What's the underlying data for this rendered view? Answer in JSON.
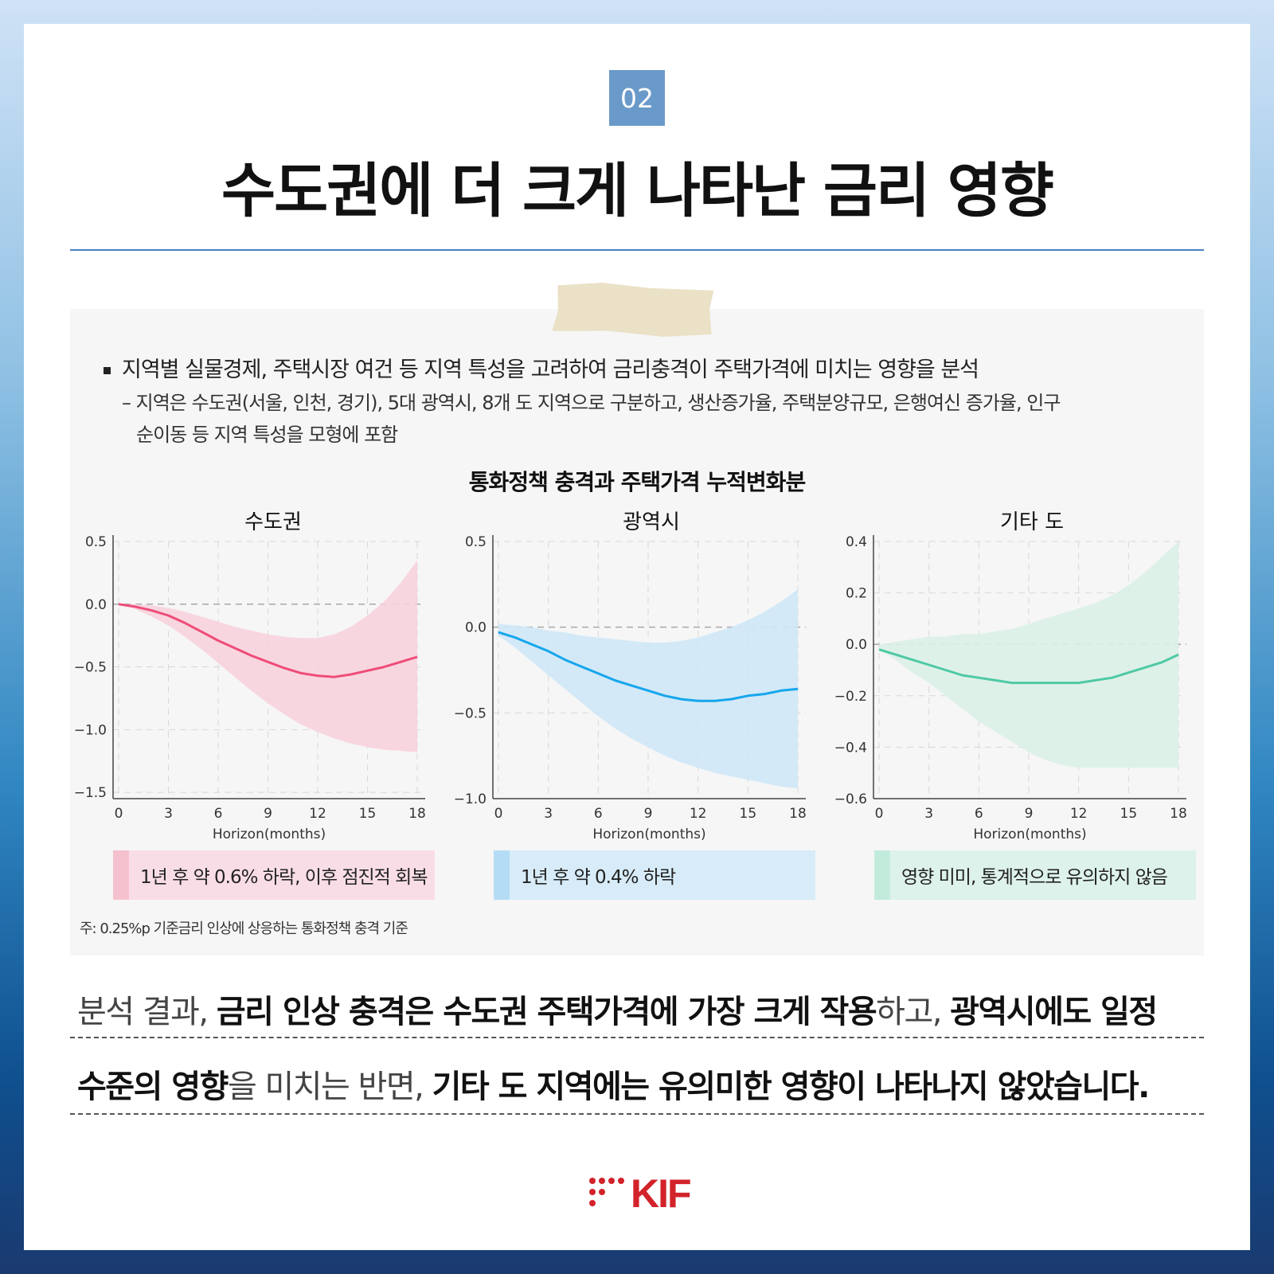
{
  "badge": "02",
  "title": "수도권에 더 크게 나타난 금리 영향",
  "bullet": "지역별 실물경제, 주택시장 여건 등 지역 특성을 고려하여 금리충격이 주택가격에 미치는 영향을 분석",
  "sub_bullet_line1": "– 지역은 수도권(서울, 인천, 경기), 5대 광역시, 8개 도 지역으로 구분하고, 생산증가율, 주택분양규모, 은행여신 증가율,  인구",
  "sub_bullet_line2": "순이동 등 지역 특성을 모형에 포함",
  "chart_title": "통화정책 충격과 주택가격 누적변화분",
  "chart_data": [
    {
      "type": "line",
      "title": "수도권",
      "xlabel": "Horizon(months)",
      "x_ticks": [
        "0",
        "3",
        "6",
        "9",
        "12",
        "15",
        "18"
      ],
      "y_ticks": [
        "0.5",
        "0.0",
        "−0.5",
        "−1.0",
        "−1.5"
      ],
      "ylim": [
        -1.55,
        0.5
      ],
      "xlim": [
        0,
        18
      ],
      "color": "#ee4d78",
      "band_color": "#f8d3de",
      "x": [
        0,
        1,
        2,
        3,
        4,
        5,
        6,
        7,
        8,
        9,
        10,
        11,
        12,
        13,
        14,
        15,
        16,
        17,
        18
      ],
      "mean": [
        0,
        -0.02,
        -0.05,
        -0.09,
        -0.15,
        -0.22,
        -0.29,
        -0.35,
        -0.41,
        -0.46,
        -0.51,
        -0.55,
        -0.57,
        -0.58,
        -0.56,
        -0.53,
        -0.5,
        -0.46,
        -0.42
      ],
      "upper": [
        0,
        0.0,
        -0.01,
        -0.03,
        -0.06,
        -0.1,
        -0.14,
        -0.18,
        -0.21,
        -0.24,
        -0.26,
        -0.27,
        -0.27,
        -0.24,
        -0.18,
        -0.09,
        0.02,
        0.17,
        0.35
      ],
      "lower": [
        0,
        -0.04,
        -0.1,
        -0.17,
        -0.26,
        -0.36,
        -0.47,
        -0.58,
        -0.69,
        -0.79,
        -0.88,
        -0.96,
        -1.02,
        -1.07,
        -1.11,
        -1.14,
        -1.16,
        -1.17,
        -1.18
      ],
      "note": "1년 후 약 0.6% 하락, 이후 점진적 회복",
      "note_bg": "#f9dde6",
      "note_bar": "#f6c1cf"
    },
    {
      "type": "line",
      "title": "광역시",
      "xlabel": "Horizon(months)",
      "x_ticks": [
        "0",
        "3",
        "6",
        "9",
        "12",
        "15",
        "18"
      ],
      "y_ticks": [
        "0.5",
        "0.0",
        "−0.5",
        "−1.0"
      ],
      "ylim": [
        -1.0,
        0.5
      ],
      "xlim": [
        0,
        18
      ],
      "color": "#16a6ec",
      "band_color": "#cfe8f7",
      "x": [
        0,
        1,
        2,
        3,
        4,
        5,
        6,
        7,
        8,
        9,
        10,
        11,
        12,
        13,
        14,
        15,
        16,
        17,
        18
      ],
      "mean": [
        -0.03,
        -0.06,
        -0.1,
        -0.14,
        -0.19,
        -0.23,
        -0.27,
        -0.31,
        -0.34,
        -0.37,
        -0.4,
        -0.42,
        -0.43,
        -0.43,
        -0.42,
        -0.4,
        -0.39,
        -0.37,
        -0.36
      ],
      "upper": [
        0.02,
        0.01,
        0.0,
        -0.02,
        -0.03,
        -0.05,
        -0.06,
        -0.07,
        -0.08,
        -0.09,
        -0.09,
        -0.08,
        -0.06,
        -0.03,
        0.0,
        0.04,
        0.09,
        0.15,
        0.22
      ],
      "lower": [
        -0.05,
        -0.12,
        -0.2,
        -0.28,
        -0.36,
        -0.44,
        -0.52,
        -0.59,
        -0.65,
        -0.7,
        -0.75,
        -0.79,
        -0.82,
        -0.85,
        -0.87,
        -0.89,
        -0.91,
        -0.93,
        -0.94
      ],
      "note": "1년 후 약 0.4% 하락",
      "note_bg": "#d7ecf8",
      "note_bar": "#b4ddf5"
    },
    {
      "type": "line",
      "title": "기타 도",
      "xlabel": "Horizon(months)",
      "x_ticks": [
        "0",
        "3",
        "6",
        "9",
        "12",
        "15",
        "18"
      ],
      "y_ticks": [
        "0.4",
        "0.2",
        "0.0",
        "−0.2",
        "−0.4",
        "−0.6"
      ],
      "ylim": [
        -0.6,
        0.4
      ],
      "xlim": [
        0,
        18
      ],
      "color": "#4ec9a4",
      "band_color": "#dcf1e8",
      "x": [
        0,
        1,
        2,
        3,
        4,
        5,
        6,
        7,
        8,
        9,
        10,
        11,
        12,
        13,
        14,
        15,
        16,
        17,
        18
      ],
      "mean": [
        -0.02,
        -0.04,
        -0.06,
        -0.08,
        -0.1,
        -0.12,
        -0.13,
        -0.14,
        -0.15,
        -0.15,
        -0.15,
        -0.15,
        -0.15,
        -0.14,
        -0.13,
        -0.11,
        -0.09,
        -0.07,
        -0.04
      ],
      "upper": [
        0.0,
        0.01,
        0.02,
        0.03,
        0.03,
        0.04,
        0.04,
        0.05,
        0.06,
        0.08,
        0.1,
        0.12,
        0.14,
        0.16,
        0.19,
        0.23,
        0.28,
        0.34,
        0.4
      ],
      "lower": [
        -0.02,
        -0.06,
        -0.11,
        -0.15,
        -0.2,
        -0.25,
        -0.3,
        -0.34,
        -0.38,
        -0.42,
        -0.45,
        -0.47,
        -0.48,
        -0.48,
        -0.48,
        -0.48,
        -0.48,
        -0.48,
        -0.48
      ],
      "note": "영향 미미, 통계적으로 유의하지 않음",
      "note_bg": "#ddf2ea",
      "note_bar": "#c3ebdc"
    }
  ],
  "footnote": "주: 0.25%p 기준금리 인상에 상응하는 통화정책 충격 기준",
  "summary": {
    "l1_a": "분석 결과, ",
    "l1_b": "금리 인상 충격은 수도권 주택가격에 가장 크게 작용",
    "l1_c": "하고, ",
    "l1_d": "광역시에도 일정",
    "l2_a": "수준의 영향",
    "l2_b": "을 미치는 반면, ",
    "l2_c": "기타 도 지역에는 유의미한 영향이 나타나지 않았습니다."
  },
  "logo_text": "KIF",
  "colors": {
    "logo": "#d2232a",
    "badge": "#6a9ac9",
    "rule": "#4a82bf"
  }
}
